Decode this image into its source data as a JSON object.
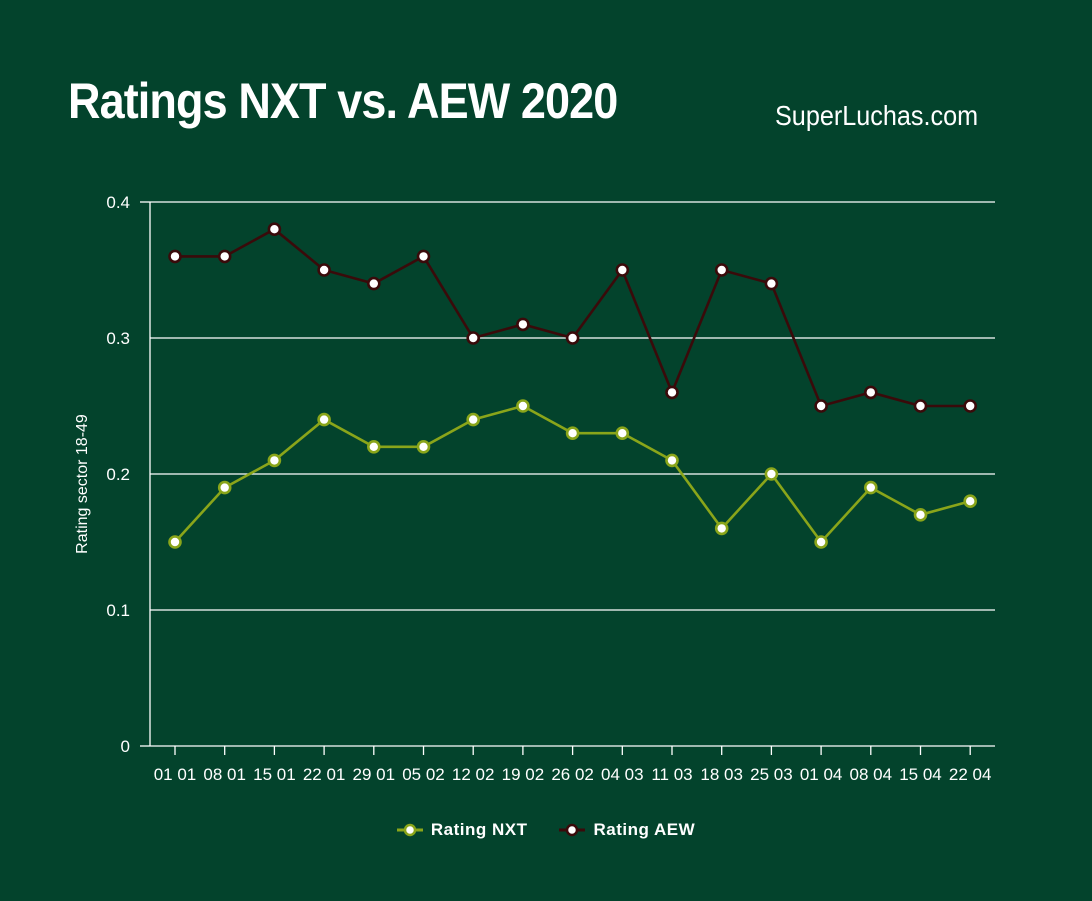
{
  "header": {
    "title": "Ratings NXT vs. AEW 2020",
    "brand": "SuperLuchas.com"
  },
  "colors": {
    "background": "#03432c",
    "nxt": "#8aa51a",
    "aew": "#3a0a0a",
    "grid": "#ffffff"
  },
  "chart_data": {
    "type": "line",
    "title": "Ratings NXT vs. AEW 2020",
    "xlabel": "",
    "ylabel": "Rating sector 18-49",
    "ylim": [
      0,
      0.4
    ],
    "yticks": [
      "0",
      "0.1",
      "0.2",
      "0.3",
      "0.4"
    ],
    "ytick_values": [
      0,
      0.1,
      0.2,
      0.3,
      0.4
    ],
    "grid": true,
    "legend_position": "bottom",
    "categories": [
      "01 01",
      "08 01",
      "15 01",
      "22 01",
      "29 01",
      "05 02",
      "12 02",
      "19 02",
      "26 02",
      "04 03",
      "11 03",
      "18 03",
      "25 03",
      "01 04",
      "08 04",
      "15 04",
      "22 04"
    ],
    "series": [
      {
        "name": "Rating NXT",
        "color": "#8aa51a",
        "values": [
          0.15,
          0.19,
          0.21,
          0.24,
          0.22,
          0.22,
          0.24,
          0.25,
          0.23,
          0.23,
          0.21,
          0.16,
          0.2,
          0.15,
          0.19,
          0.17,
          0.18
        ]
      },
      {
        "name": "Rating AEW",
        "color": "#3a0a0a",
        "values": [
          0.36,
          0.36,
          0.38,
          0.35,
          0.34,
          0.36,
          0.3,
          0.31,
          0.3,
          0.35,
          0.26,
          0.35,
          0.34,
          0.25,
          0.26,
          0.25,
          0.25
        ]
      }
    ]
  }
}
